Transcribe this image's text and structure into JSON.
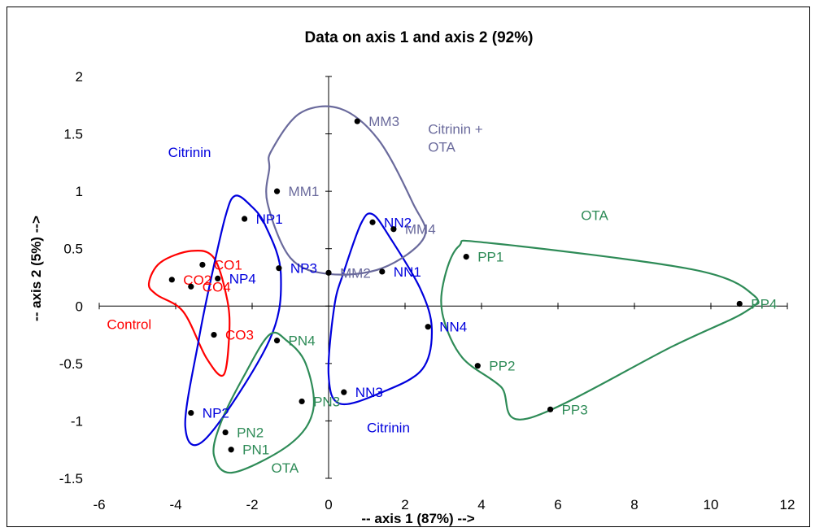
{
  "chart_data": {
    "type": "scatter",
    "title": "Data on axis 1 and axis 2 (92%)",
    "xlabel": "-- axis 1 (87%) -->",
    "ylabel": "-- axis 2 (5%) -->",
    "xlim": [
      -6,
      12
    ],
    "ylim": [
      -1.5,
      2
    ],
    "xticks": [
      -6,
      -4,
      -2,
      0,
      2,
      4,
      6,
      8,
      10,
      12
    ],
    "yticks": [
      -1.5,
      -1,
      -0.5,
      0,
      0.5,
      1,
      1.5,
      2
    ],
    "grid": false,
    "colors": {
      "red": "#ff0000",
      "blue": "#0000dd",
      "purple": "#6a6a9c",
      "green": "#2e8b57"
    },
    "points": [
      {
        "label": "CO1",
        "x": -3.3,
        "y": 0.36,
        "color": "red"
      },
      {
        "label": "CO2",
        "x": -4.1,
        "y": 0.23,
        "color": "red"
      },
      {
        "label": "CO4",
        "x": -3.6,
        "y": 0.17,
        "color": "red"
      },
      {
        "label": "CO3",
        "x": -3.0,
        "y": -0.25,
        "color": "red"
      },
      {
        "label": "NP1",
        "x": -2.2,
        "y": 0.76,
        "color": "blue"
      },
      {
        "label": "NP3",
        "x": -1.3,
        "y": 0.33,
        "color": "blue"
      },
      {
        "label": "NP4",
        "x": -2.9,
        "y": 0.24,
        "color": "blue"
      },
      {
        "label": "NP2",
        "x": -3.6,
        "y": -0.93,
        "color": "blue"
      },
      {
        "label": "NN2",
        "x": 1.15,
        "y": 0.73,
        "color": "blue"
      },
      {
        "label": "NN1",
        "x": 1.4,
        "y": 0.3,
        "color": "blue"
      },
      {
        "label": "NN4",
        "x": 2.6,
        "y": -0.18,
        "color": "blue"
      },
      {
        "label": "NN3",
        "x": 0.4,
        "y": -0.75,
        "color": "blue"
      },
      {
        "label": "MM3",
        "x": 0.75,
        "y": 1.61,
        "color": "purple"
      },
      {
        "label": "MM1",
        "x": -1.35,
        "y": 1.0,
        "color": "purple"
      },
      {
        "label": "MM4",
        "x": 1.7,
        "y": 0.67,
        "color": "purple"
      },
      {
        "label": "MM2",
        "x": 0.0,
        "y": 0.29,
        "color": "purple"
      },
      {
        "label": "PN4",
        "x": -1.35,
        "y": -0.3,
        "color": "green"
      },
      {
        "label": "PN3",
        "x": -0.7,
        "y": -0.83,
        "color": "green"
      },
      {
        "label": "PN2",
        "x": -2.7,
        "y": -1.1,
        "color": "green"
      },
      {
        "label": "PN1",
        "x": -2.55,
        "y": -1.25,
        "color": "green"
      },
      {
        "label": "PP1",
        "x": 3.6,
        "y": 0.43,
        "color": "green"
      },
      {
        "label": "PP4",
        "x": 10.75,
        "y": 0.02,
        "color": "green"
      },
      {
        "label": "PP2",
        "x": 3.9,
        "y": -0.52,
        "color": "green"
      },
      {
        "label": "PP3",
        "x": 5.8,
        "y": -0.9,
        "color": "green"
      }
    ],
    "groups": [
      {
        "label": "Control",
        "color": "red",
        "label_pos": [
          -5.8,
          -0.2
        ],
        "hull": [
          [
            -4.7,
            0.2
          ],
          [
            -4.4,
            0.38
          ],
          [
            -3.6,
            0.48
          ],
          [
            -3.0,
            0.42
          ],
          [
            -2.65,
            0.05
          ],
          [
            -2.6,
            -0.25
          ],
          [
            -2.75,
            -0.6
          ],
          [
            -3.2,
            -0.45
          ],
          [
            -3.8,
            -0.05
          ],
          [
            -4.5,
            0.1
          ]
        ]
      },
      {
        "label": "Citrinin",
        "color": "blue",
        "label_pos": [
          -4.2,
          1.3
        ],
        "hull": [
          [
            -3.1,
            0.2
          ],
          [
            -2.7,
            0.78
          ],
          [
            -2.45,
            0.96
          ],
          [
            -2.05,
            0.88
          ],
          [
            -1.65,
            0.7
          ],
          [
            -1.25,
            0.28
          ],
          [
            -1.55,
            -0.3
          ],
          [
            -3.2,
            -1.15
          ],
          [
            -3.75,
            -1.05
          ],
          [
            -3.4,
            -0.3
          ]
        ]
      },
      {
        "label": "Citrinin",
        "color": "blue",
        "label_pos": [
          1.0,
          -1.1
        ],
        "hull": [
          [
            0.4,
            0.3
          ],
          [
            0.85,
            0.72
          ],
          [
            1.15,
            0.8
          ],
          [
            1.6,
            0.6
          ],
          [
            2.4,
            0.15
          ],
          [
            2.7,
            -0.2
          ],
          [
            2.45,
            -0.55
          ],
          [
            1.4,
            -0.75
          ],
          [
            0.3,
            -0.85
          ],
          [
            0.0,
            -0.6
          ],
          [
            0.15,
            0.0
          ]
        ]
      },
      {
        "label": "Citrinin +\nOTA",
        "color": "purple",
        "label_pos": [
          2.6,
          1.5
        ],
        "hull": [
          [
            -1.5,
            1.35
          ],
          [
            -0.75,
            1.68
          ],
          [
            0.3,
            1.72
          ],
          [
            1.3,
            1.45
          ],
          [
            2.2,
            0.9
          ],
          [
            2.5,
            0.6
          ],
          [
            1.4,
            0.33
          ],
          [
            0.0,
            0.28
          ],
          [
            -1.0,
            0.42
          ],
          [
            -1.6,
            0.9
          ],
          [
            -1.55,
            1.2
          ]
        ]
      },
      {
        "label": "OTA",
        "color": "green",
        "label_pos": [
          -1.5,
          -1.45
        ],
        "hull": [
          [
            -1.55,
            -0.25
          ],
          [
            -1.1,
            -0.3
          ],
          [
            -0.6,
            -0.5
          ],
          [
            -0.4,
            -0.9
          ],
          [
            -1.0,
            -1.2
          ],
          [
            -2.5,
            -1.45
          ],
          [
            -3.0,
            -1.3
          ],
          [
            -2.8,
            -1.0
          ],
          [
            -2.2,
            -0.6
          ]
        ]
      },
      {
        "label": "OTA",
        "color": "green",
        "label_pos": [
          6.6,
          0.75
        ],
        "hull": [
          [
            3.0,
            0.2
          ],
          [
            3.4,
            0.52
          ],
          [
            4.2,
            0.55
          ],
          [
            9.5,
            0.32
          ],
          [
            11.1,
            0.1
          ],
          [
            10.9,
            -0.05
          ],
          [
            9.0,
            -0.35
          ],
          [
            5.2,
            -0.98
          ],
          [
            4.5,
            -0.7
          ],
          [
            3.5,
            -0.45
          ],
          [
            3.0,
            -0.1
          ]
        ]
      }
    ]
  }
}
